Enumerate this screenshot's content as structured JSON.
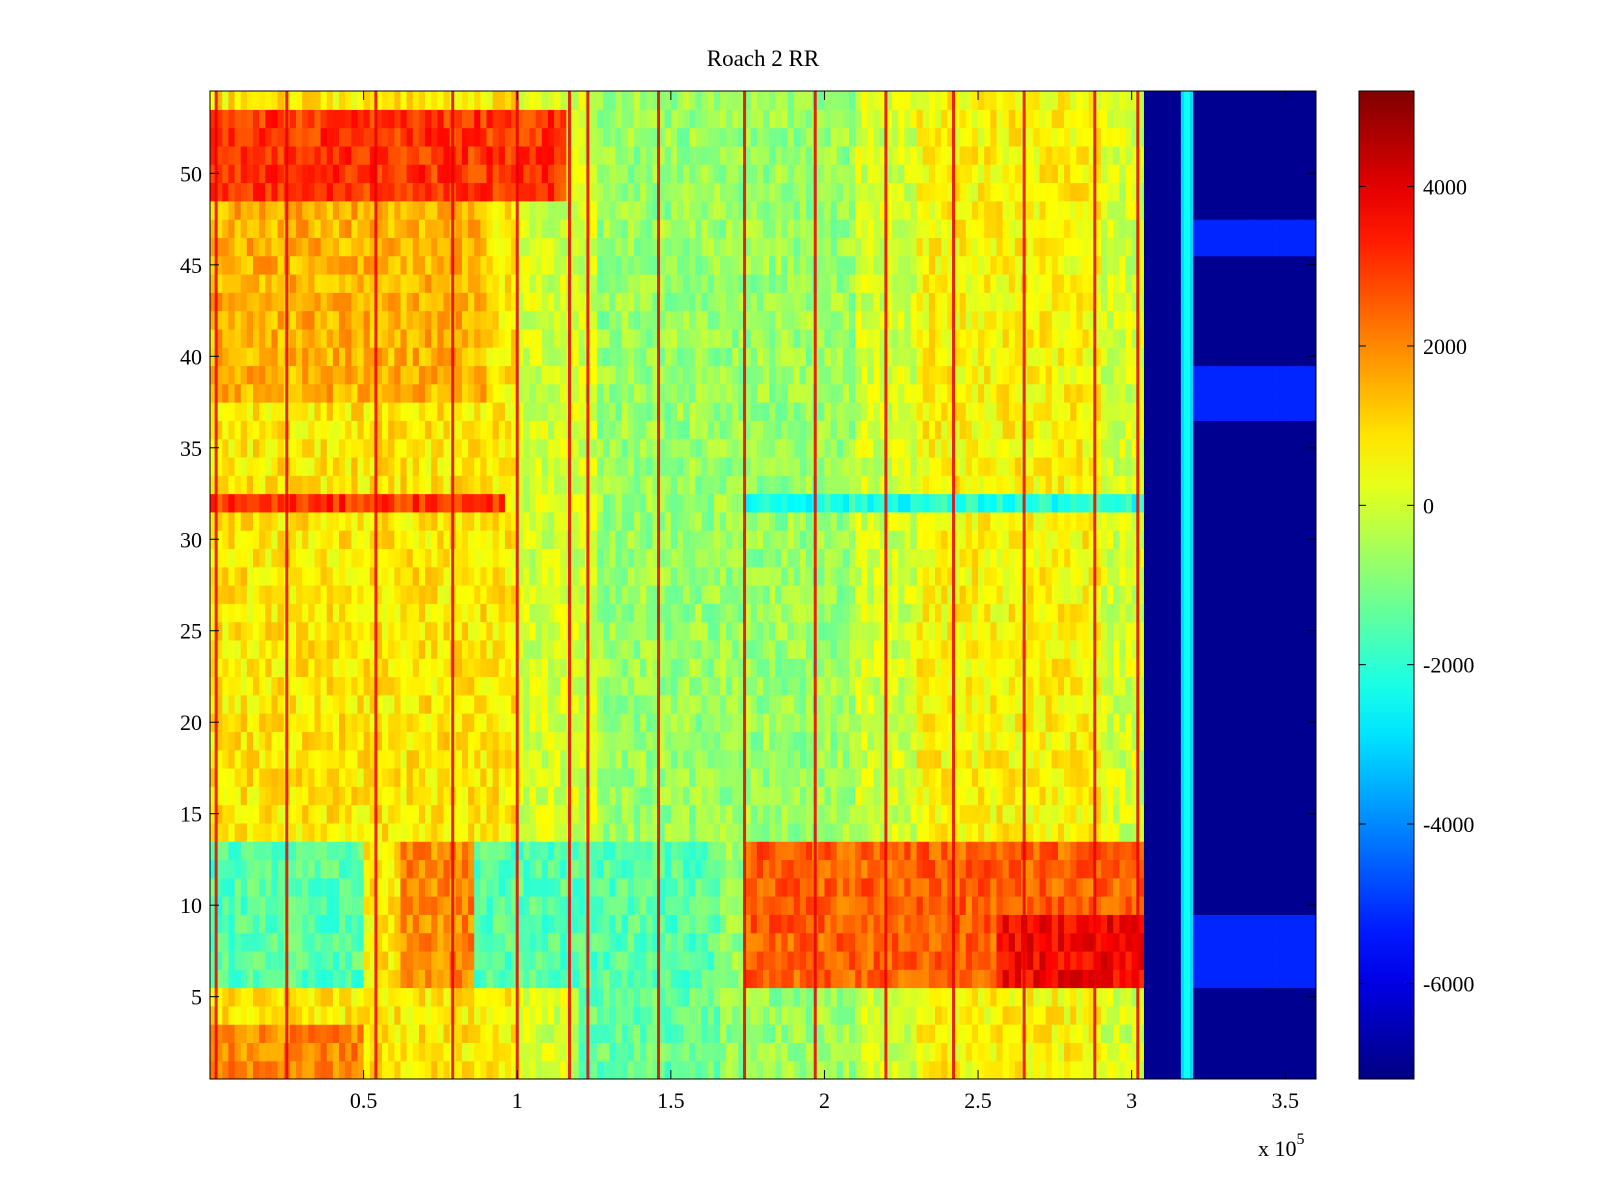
{
  "chart_data": {
    "type": "heatmap",
    "title": "Roach 2 RR",
    "xlabel": "",
    "ylabel": "",
    "x_exponent_label": "x 10",
    "x_exponent_power": "5",
    "xlim": [
      0,
      3.6
    ],
    "ylim": [
      0.5,
      54.5
    ],
    "x_ticks": [
      0.5,
      1,
      1.5,
      2,
      2.5,
      3,
      3.5
    ],
    "x_tick_labels": [
      "0.5",
      "1",
      "1.5",
      "2",
      "2.5",
      "3",
      "3.5"
    ],
    "y_ticks": [
      5,
      10,
      15,
      20,
      25,
      30,
      35,
      40,
      45,
      50
    ],
    "y_tick_labels": [
      "5",
      "10",
      "15",
      "20",
      "25",
      "30",
      "35",
      "40",
      "45",
      "50"
    ],
    "colormap": "jet",
    "clim": [
      -7200,
      5200
    ],
    "colorbar_ticks": [
      4000,
      2000,
      0,
      -2000,
      -4000,
      -6000
    ],
    "colorbar_tick_labels": [
      "4000",
      "2000",
      "0",
      "-2000",
      "-4000",
      "-6000"
    ],
    "rows": 54,
    "columns_description_values": {
      "baseline": 0,
      "left_region_upper": [
        {
          "y_range": [
            49,
            53
          ],
          "x_range": [
            0,
            1.15
          ],
          "value": 3000
        },
        {
          "y_range": [
            38,
            48
          ],
          "x_range": [
            0,
            0.9
          ],
          "value": 1500
        },
        {
          "y_range": [
            31.5,
            32.5
          ],
          "x_range": [
            0,
            0.95
          ],
          "value": 3000
        },
        {
          "y_range": [
            0.5,
            3
          ],
          "x_range": [
            0,
            0.5
          ],
          "value": 2000
        }
      ],
      "cool_band_lower": [
        {
          "y_range": [
            6,
            13
          ],
          "x_range": [
            0,
            0.5
          ],
          "value": -1500
        },
        {
          "y_range": [
            6,
            13
          ],
          "x_range": [
            0.85,
            1.65
          ],
          "value": -1500
        },
        {
          "y_range": [
            1,
            5
          ],
          "x_range": [
            1.2,
            1.65
          ],
          "value": -1300
        }
      ],
      "warm_band_lower": [
        {
          "y_range": [
            6,
            13
          ],
          "x_range": [
            0.62,
            0.85
          ],
          "value": 2000
        },
        {
          "y_range": [
            6,
            13
          ],
          "x_range": [
            1.75,
            3.05
          ],
          "value": 2500
        }
      ],
      "row_32_gap": {
        "x_range": [
          1.75,
          3.15
        ],
        "value": -2200
      },
      "deep_blue_region": {
        "x_range": [
          3.05,
          3.6
        ],
        "value": -7000
      },
      "bright_line_x": 3.18,
      "red_stripes_x": [
        0.02,
        0.25,
        0.54,
        0.79,
        1.0,
        1.17,
        1.23,
        1.46,
        1.74,
        1.97,
        2.2,
        2.42,
        2.65,
        2.88,
        3.02
      ]
    }
  }
}
